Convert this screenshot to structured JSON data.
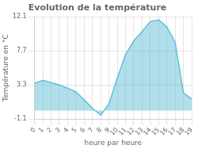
{
  "chart_data": {
    "type": "area",
    "title": "Evolution de la température",
    "xlabel": "heure par heure",
    "ylabel": "Température en °C",
    "x": [
      0,
      1,
      2,
      3,
      4,
      5,
      6,
      7,
      8,
      9,
      10,
      11,
      12,
      13,
      14,
      15,
      16,
      17,
      18,
      19
    ],
    "values": [
      3.5,
      3.9,
      3.6,
      3.3,
      2.9,
      2.4,
      1.4,
      0.3,
      -0.6,
      0.9,
      4.2,
      7.2,
      9.0,
      10.2,
      11.5,
      11.7,
      10.8,
      8.8,
      2.3,
      1.5
    ],
    "color": "#62c0d8",
    "xlim": [
      0,
      19
    ],
    "ylim": [
      -1.1,
      12.1
    ],
    "xticks": [
      0,
      1,
      2,
      3,
      4,
      5,
      6,
      7,
      8,
      9,
      10,
      11,
      12,
      13,
      14,
      15,
      16,
      17,
      18,
      19
    ],
    "yticks": [
      -1.1,
      3.3,
      7.7,
      12.1
    ],
    "grid": true
  }
}
